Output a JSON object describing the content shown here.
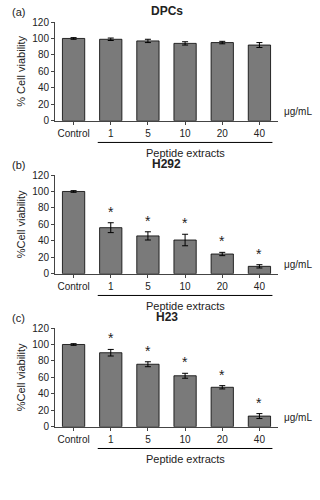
{
  "chart_data": [
    {
      "type": "bar",
      "title": "DPCs",
      "ylabel": "% Cell viability",
      "xlabel": "Peptide extracts",
      "categories": [
        "Control",
        "1",
        "5",
        "10",
        "20",
        "40"
      ],
      "values": [
        100,
        99,
        97,
        94,
        95,
        92
      ],
      "errors": [
        1,
        1.5,
        2,
        2,
        1.5,
        3
      ],
      "color": "#7a7a7a",
      "ylim": [
        0,
        120
      ],
      "yticks": [
        0,
        20,
        40,
        60,
        80,
        100,
        120
      ],
      "grid": false,
      "annotations": [
        {
          "text": "(a)"
        },
        {
          "text": "μg/mL"
        }
      ]
    },
    {
      "type": "bar",
      "title": "H292",
      "ylabel": "%Cell viability",
      "xlabel": "Peptide extracts",
      "categories": [
        "Control",
        "1",
        "5",
        "10",
        "20",
        "40"
      ],
      "values": [
        100,
        56,
        46,
        41,
        24,
        9
      ],
      "errors": [
        1,
        6,
        5,
        7,
        2,
        2
      ],
      "color": "#7a7a7a",
      "ylim": [
        0,
        120
      ],
      "yticks": [
        0,
        20,
        40,
        60,
        80,
        100,
        120
      ],
      "grid": false,
      "annotations": [
        {
          "text": "(b)"
        },
        {
          "text": "μg/mL"
        },
        {
          "text": "*",
          "category": "1"
        },
        {
          "text": "*",
          "category": "5"
        },
        {
          "text": "*",
          "category": "10"
        },
        {
          "text": "*",
          "category": "20"
        },
        {
          "text": "*",
          "category": "40"
        }
      ]
    },
    {
      "type": "bar",
      "title": "H23",
      "ylabel": "%Cell viability",
      "xlabel": "Peptide extracts",
      "categories": [
        "Control",
        "1",
        "5",
        "10",
        "20",
        "40"
      ],
      "values": [
        100,
        90,
        76,
        62,
        48,
        13
      ],
      "errors": [
        1,
        4,
        3,
        3,
        2,
        3
      ],
      "color": "#7a7a7a",
      "ylim": [
        0,
        120
      ],
      "yticks": [
        0,
        20,
        40,
        60,
        80,
        100,
        120
      ],
      "grid": false,
      "annotations": [
        {
          "text": "(c)"
        },
        {
          "text": "μg/mL"
        },
        {
          "text": "*",
          "category": "1"
        },
        {
          "text": "*",
          "category": "5"
        },
        {
          "text": "*",
          "category": "10"
        },
        {
          "text": "*",
          "category": "20"
        },
        {
          "text": "*",
          "category": "40"
        }
      ]
    }
  ]
}
